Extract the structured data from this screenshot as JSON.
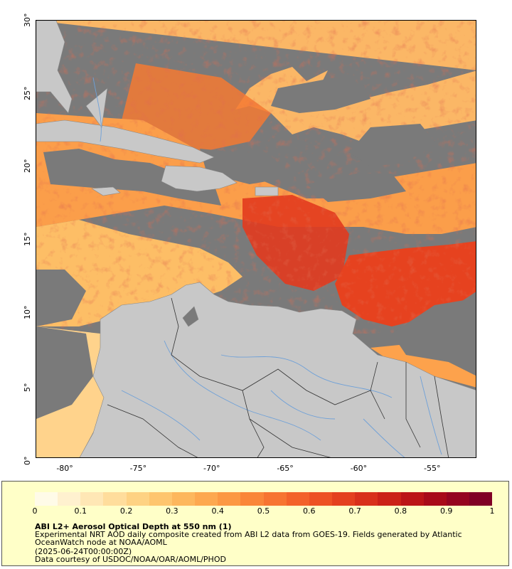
{
  "map": {
    "x_ticks": [
      "-80°",
      "-75°",
      "-70°",
      "-65°",
      "-60°",
      "-55°"
    ],
    "y_ticks": [
      "0°",
      "5°",
      "10°",
      "15°",
      "20°",
      "25°",
      "30°"
    ],
    "colors": {
      "land": "#c8c8c8",
      "no_data": "#7a7a7a",
      "rivers": "#6ea0d8",
      "borders": "#333333"
    }
  },
  "legend": {
    "tick_labels": [
      "0",
      "0.1",
      "0.2",
      "0.3",
      "0.4",
      "0.5",
      "0.6",
      "0.7",
      "0.8",
      "0.9",
      "1"
    ],
    "title": "ABI L2+ Aerosol Optical Depth at 550 nm (1)",
    "description": "Experimental NRT AOD daily composite created from ABI L2 data from GOES-19. Fields generated by Atlantic OceanWatch node at NOAA/AOML",
    "date": "(2025-06-24T00:00:00Z)",
    "credit": "Data courtesy of USDOC/NOAA/OAR/AOML/PHOD",
    "colormap": [
      "#fffbe8",
      "#fff1cf",
      "#ffe7b5",
      "#ffdd9c",
      "#fed283",
      "#fec56e",
      "#fdb75d",
      "#fda84f",
      "#fc9843",
      "#fa8639",
      "#f77431",
      "#f3622a",
      "#ed5124",
      "#e4401f",
      "#d8301b",
      "#cb2118",
      "#bb1417",
      "#a80a19",
      "#950420",
      "#800026"
    ]
  }
}
